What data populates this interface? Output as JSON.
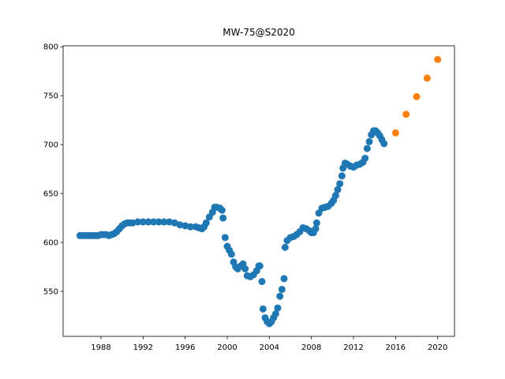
{
  "chart_data": {
    "type": "scatter",
    "title": "MW-75@S2020",
    "xlim": [
      1984.4,
      2021.6
    ],
    "ylim": [
      504,
      801
    ],
    "xticks": [
      1988,
      1992,
      1996,
      2000,
      2004,
      2008,
      2012,
      2016,
      2020
    ],
    "yticks": [
      550,
      600,
      650,
      700,
      750,
      800
    ],
    "grid": false,
    "series": [
      {
        "color": "#1f77b4",
        "x": [
          1986,
          1986.25,
          1986.5,
          1986.75,
          1987,
          1987.25,
          1987.5,
          1987.75,
          1988,
          1988.25,
          1988.5,
          1988.75,
          1989,
          1989.25,
          1989.5,
          1989.75,
          1990,
          1990.25,
          1990.5,
          1990.75,
          1991,
          1991.5,
          1992,
          1992.5,
          1993,
          1993.5,
          1994,
          1994.5,
          1995,
          1995.5,
          1996,
          1996.5,
          1997,
          1997.3,
          1997.6,
          1997.8,
          1998,
          1998.3,
          1998.6,
          1998.8,
          1999,
          1999.3,
          1999.5,
          1999.6,
          1999.8,
          2000,
          2000.2,
          2000.4,
          2000.6,
          2000.8,
          2001,
          2001.3,
          2001.5,
          2001.7,
          2001.9,
          2002.2,
          2002.5,
          2002.8,
          2003,
          2003.1,
          2003.3,
          2003.4,
          2003.6,
          2003.8,
          2004,
          2004.2,
          2004.4,
          2004.6,
          2004.8,
          2005,
          2005.2,
          2005.4,
          2005.5,
          2005.7,
          2006,
          2006.3,
          2006.6,
          2006.9,
          2007.2,
          2007.5,
          2007.8,
          2008,
          2008.2,
          2008.4,
          2008.5,
          2008.7,
          2009,
          2009.3,
          2009.6,
          2009.9,
          2010.1,
          2010.3,
          2010.5,
          2010.7,
          2010.9,
          2011,
          2011.2,
          2011.4,
          2011.7,
          2012,
          2012.3,
          2012.6,
          2012.9,
          2013.1,
          2013.3,
          2013.5,
          2013.7,
          2013.9,
          2014.1,
          2014.3,
          2014.5,
          2014.7,
          2014.9
        ],
        "values": [
          607,
          607,
          607,
          607,
          607,
          607,
          607,
          607,
          608,
          608,
          608,
          607,
          608,
          609,
          611,
          614,
          617,
          619,
          620,
          620,
          620,
          621,
          621,
          621,
          621,
          621,
          621,
          621,
          620,
          618,
          617,
          616,
          616,
          615,
          614,
          616,
          620,
          626,
          631,
          636,
          636,
          635,
          633,
          625,
          605,
          596,
          592,
          588,
          580,
          575,
          573,
          576,
          578,
          573,
          566,
          565,
          567,
          571,
          576,
          576,
          560,
          532,
          523,
          519,
          517,
          519,
          523,
          527,
          533,
          545,
          552,
          563,
          595,
          602,
          605,
          606,
          608,
          611,
          615,
          614,
          612,
          610,
          610,
          614,
          620,
          630,
          635,
          636,
          637,
          640,
          643,
          648,
          654,
          660,
          668,
          676,
          681,
          680,
          678,
          677,
          679,
          680,
          682,
          686,
          696,
          703,
          710,
          714,
          714,
          712,
          709,
          705,
          701
        ]
      },
      {
        "color": "#ff7f0e",
        "x": [
          2016,
          2017,
          2018,
          2019,
          2020
        ],
        "values": [
          712,
          731,
          749,
          768,
          787
        ]
      }
    ]
  }
}
